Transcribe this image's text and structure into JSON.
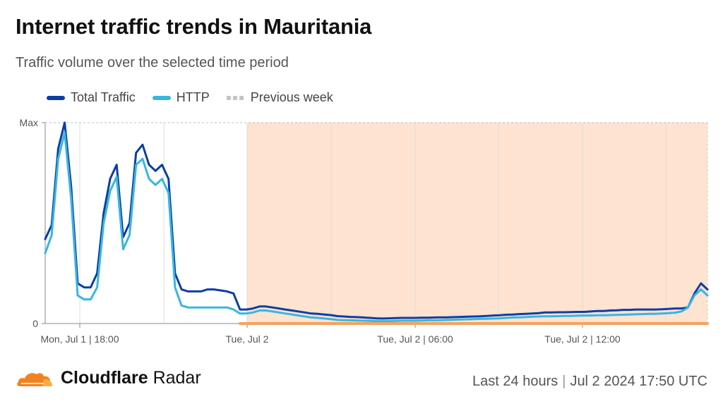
{
  "title": "Internet traffic trends in Mauritania",
  "subtitle": "Traffic volume over the selected time period",
  "legend": [
    {
      "label": "Total Traffic",
      "color": "#0a3ea6"
    },
    {
      "label": "HTTP",
      "color": "#38b6e0"
    },
    {
      "label": "Previous week",
      "color": "#c4c4c4"
    }
  ],
  "brand": {
    "name_bold": "Cloudflare",
    "name_regular": " Radar"
  },
  "footer": {
    "range": "Last 24 hours",
    "timestamp": "Jul 2 2024 17:50 UTC"
  },
  "chart_data": {
    "type": "line",
    "y_ticks": [
      "Max",
      "0"
    ],
    "x_ticks": [
      "Mon, Jul 1 | 18:00",
      "Tue, Jul 2",
      "Tue, Jul 2 | 06:00",
      "Tue, Jul 2 | 12:00"
    ],
    "highlight_color": "#fde3d0",
    "previous_week_color": "#f5a25e",
    "series": [
      {
        "name": "Total Traffic",
        "color": "#0a3ea6",
        "values": [
          0.42,
          0.49,
          0.87,
          1.0,
          0.68,
          0.2,
          0.18,
          0.18,
          0.25,
          0.55,
          0.72,
          0.79,
          0.43,
          0.5,
          0.85,
          0.89,
          0.79,
          0.76,
          0.79,
          0.72,
          0.25,
          0.17,
          0.16,
          0.16,
          0.16,
          0.17,
          0.17,
          0.165,
          0.16,
          0.15,
          0.07,
          0.07,
          0.075,
          0.085,
          0.085,
          0.08,
          0.075,
          0.07,
          0.065,
          0.06,
          0.055,
          0.05,
          0.048,
          0.045,
          0.042,
          0.037,
          0.035,
          0.033,
          0.032,
          0.03,
          0.028,
          0.026,
          0.025,
          0.026,
          0.027,
          0.028,
          0.028,
          0.028,
          0.029,
          0.029,
          0.03,
          0.031,
          0.031,
          0.032,
          0.033,
          0.034,
          0.035,
          0.036,
          0.038,
          0.04,
          0.041,
          0.044,
          0.045,
          0.047,
          0.048,
          0.05,
          0.052,
          0.055,
          0.055,
          0.056,
          0.056,
          0.057,
          0.058,
          0.058,
          0.06,
          0.062,
          0.062,
          0.065,
          0.066,
          0.068,
          0.068,
          0.07,
          0.07,
          0.07,
          0.07,
          0.071,
          0.073,
          0.075,
          0.075,
          0.08,
          0.15,
          0.2,
          0.17
        ]
      },
      {
        "name": "HTTP",
        "color": "#38b6e0",
        "values": [
          0.35,
          0.44,
          0.82,
          0.95,
          0.62,
          0.14,
          0.12,
          0.12,
          0.18,
          0.5,
          0.66,
          0.73,
          0.37,
          0.44,
          0.79,
          0.82,
          0.72,
          0.69,
          0.72,
          0.65,
          0.18,
          0.09,
          0.08,
          0.08,
          0.08,
          0.08,
          0.08,
          0.08,
          0.08,
          0.07,
          0.05,
          0.05,
          0.055,
          0.065,
          0.065,
          0.06,
          0.055,
          0.05,
          0.045,
          0.04,
          0.035,
          0.03,
          0.028,
          0.025,
          0.022,
          0.018,
          0.017,
          0.016,
          0.015,
          0.014,
          0.013,
          0.012,
          0.012,
          0.012,
          0.013,
          0.014,
          0.014,
          0.014,
          0.015,
          0.016,
          0.016,
          0.017,
          0.018,
          0.019,
          0.02,
          0.021,
          0.022,
          0.023,
          0.024,
          0.025,
          0.026,
          0.028,
          0.03,
          0.031,
          0.032,
          0.034,
          0.035,
          0.036,
          0.036,
          0.037,
          0.038,
          0.038,
          0.039,
          0.04,
          0.04,
          0.041,
          0.041,
          0.042,
          0.043,
          0.044,
          0.045,
          0.046,
          0.047,
          0.048,
          0.048,
          0.05,
          0.052,
          0.054,
          0.06,
          0.08,
          0.14,
          0.17,
          0.14
        ]
      },
      {
        "name": "Previous week",
        "color": "#f5a25e",
        "values": [
          null,
          null,
          null,
          null,
          null,
          null,
          null,
          null,
          null,
          null,
          null,
          null,
          null,
          null,
          null,
          null,
          null,
          null,
          null,
          null,
          null,
          null,
          null,
          null,
          null,
          null,
          null,
          null,
          null,
          null,
          0.0,
          0.0,
          0.0,
          0.0,
          0.0,
          0.0,
          0.0,
          0.0,
          0.0,
          0.0,
          0.0,
          0.0,
          0.0,
          0.0,
          0.0,
          0.0,
          0.0,
          0.0,
          0.0,
          0.0,
          0.0,
          0.0,
          0.0,
          0.0,
          0.0,
          0.0,
          0.0,
          0.0,
          0.0,
          0.0,
          0.0,
          0.0,
          0.0,
          0.0,
          0.0,
          0.0,
          0.0,
          0.0,
          0.0,
          0.0,
          0.0,
          0.0,
          0.0,
          0.0,
          0.0,
          0.0,
          0.0,
          0.0,
          0.0,
          0.0,
          0.0,
          0.0,
          0.0,
          0.0,
          0.0,
          0.0,
          0.0,
          0.0,
          0.0,
          0.0,
          0.0,
          0.0,
          0.0,
          0.0,
          0.0,
          0.0,
          0.0,
          0.0,
          0.0,
          0.0,
          0.0,
          0.0,
          0.0
        ]
      }
    ],
    "ylim": [
      0,
      1
    ],
    "grid": true,
    "legend_position": "top-left"
  }
}
